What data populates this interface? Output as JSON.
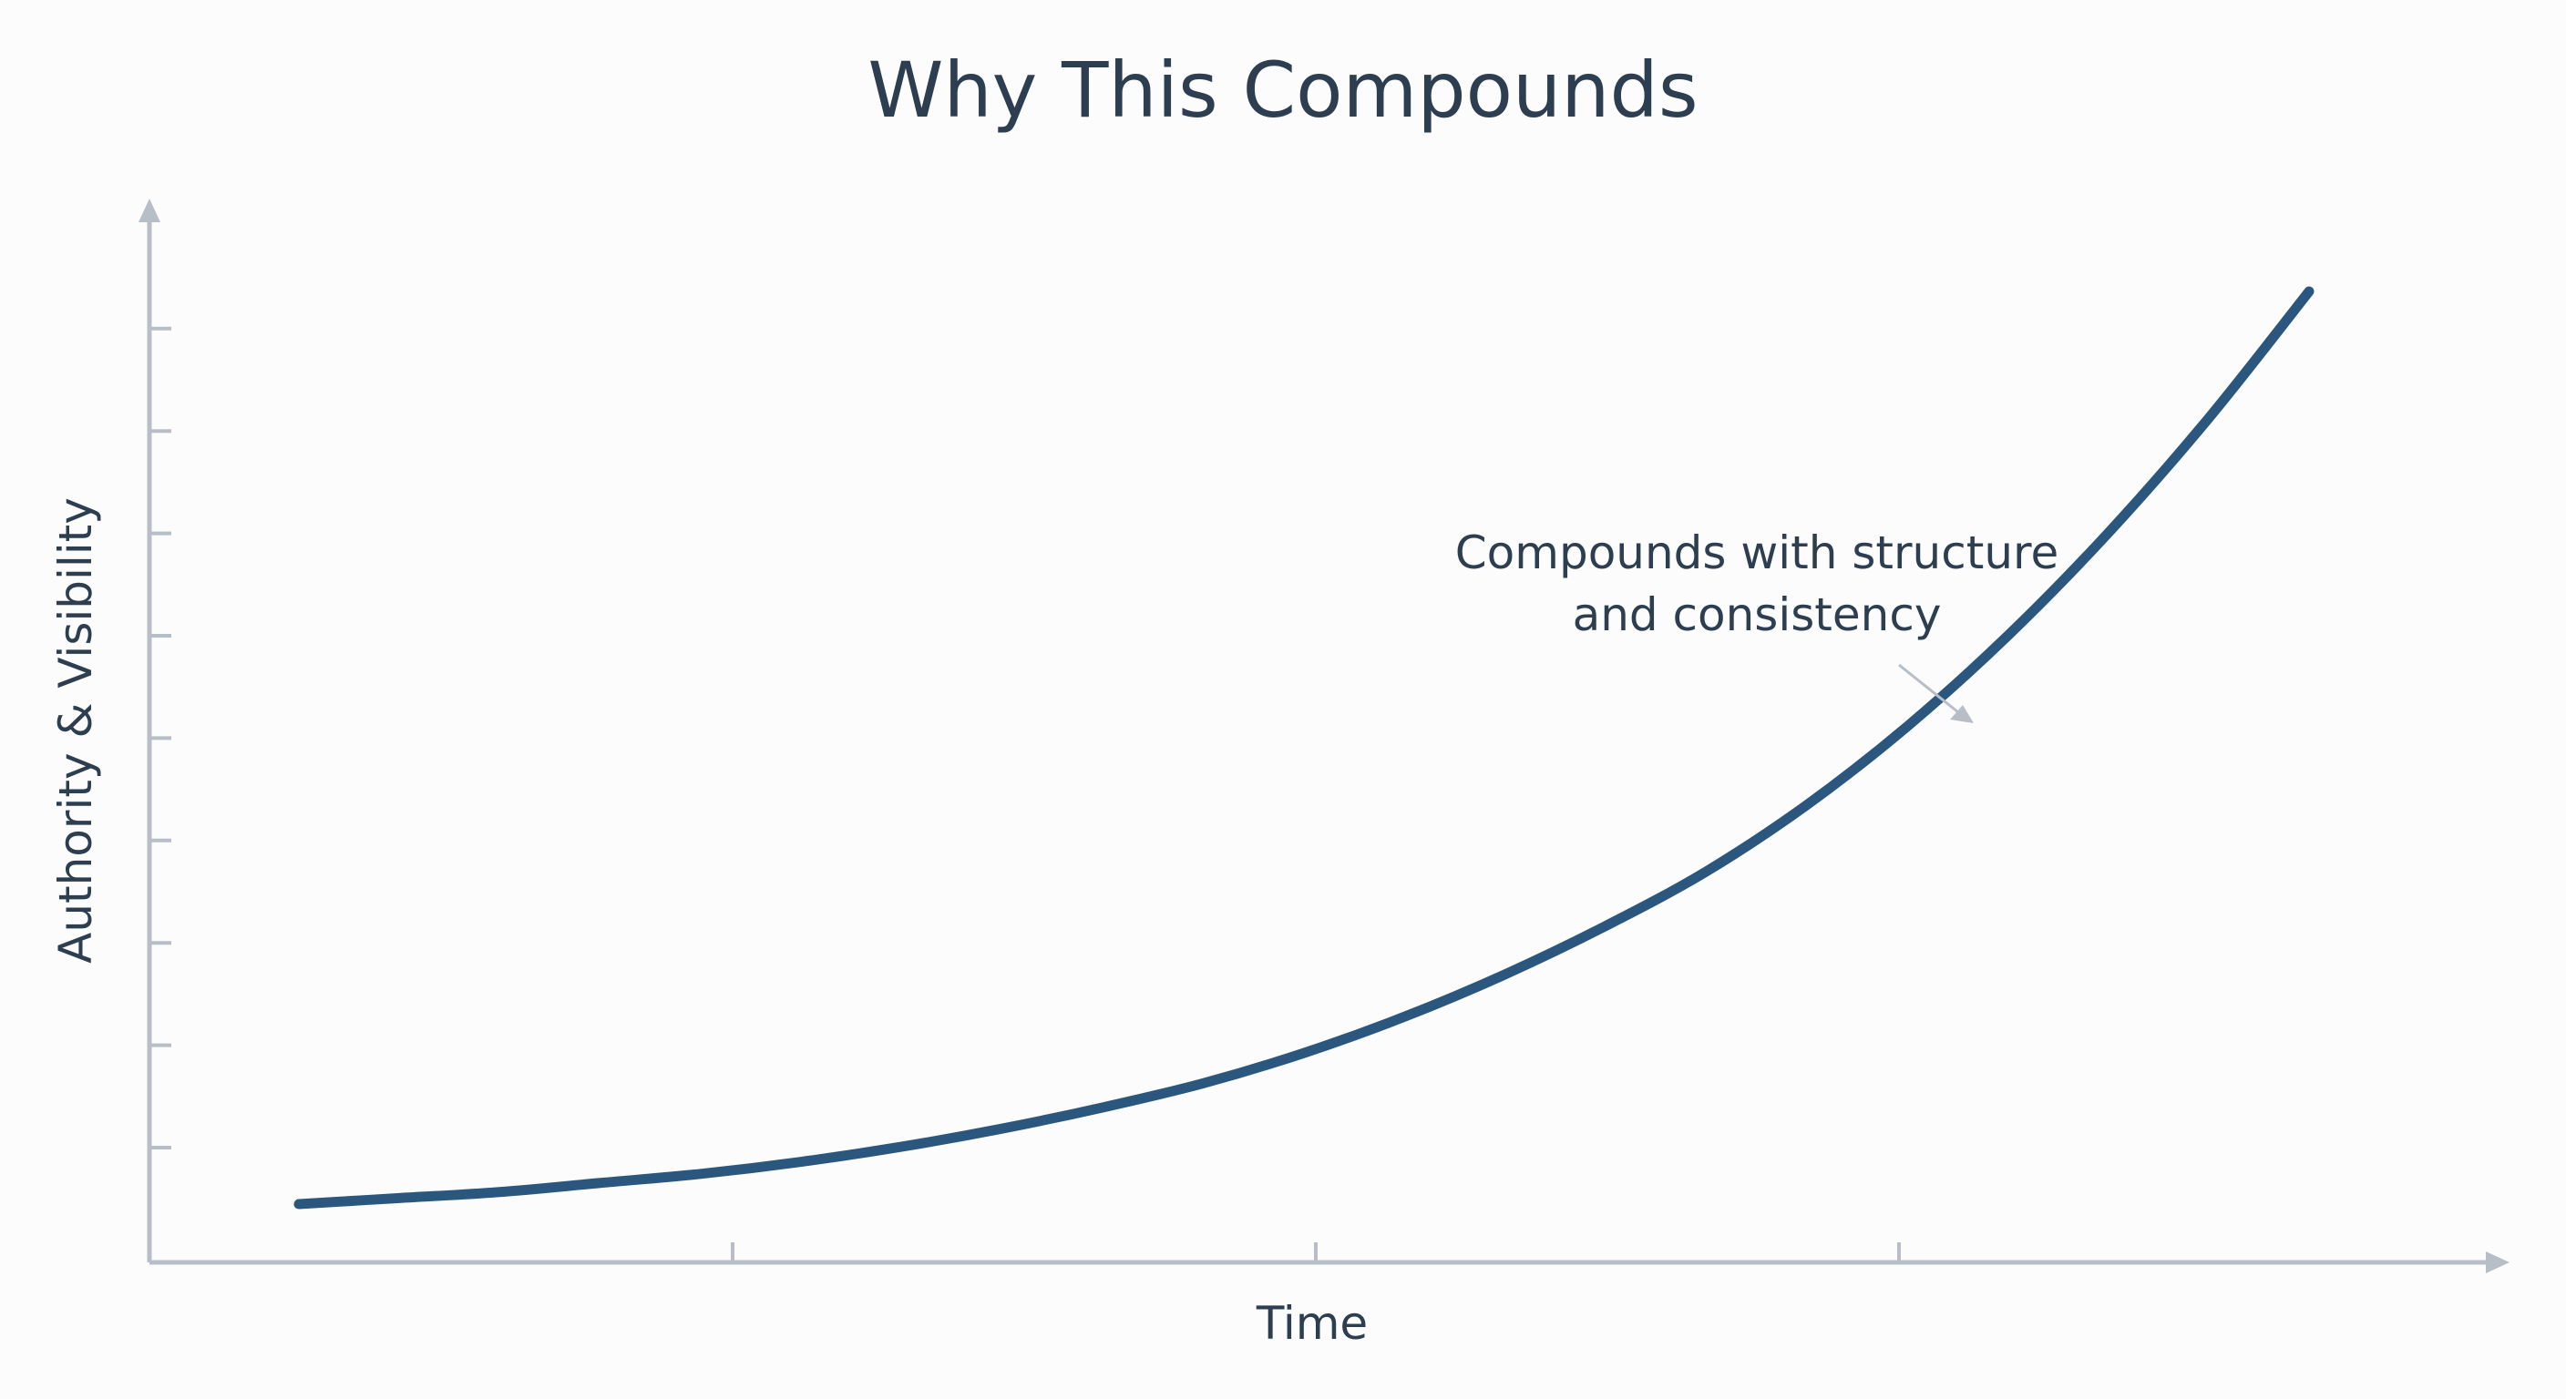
{
  "chart_data": {
    "type": "line",
    "title": "Why This Compounds",
    "xlabel": "Time",
    "ylabel": "Authority & Visibility",
    "x": [
      0,
      1,
      2,
      3,
      4,
      5,
      6,
      7,
      8,
      9,
      10,
      11,
      12,
      13,
      14,
      15,
      16,
      17,
      18,
      19,
      20
    ],
    "series": [
      {
        "values": [
          0.5,
          0.6,
          0.7,
          0.85,
          1.0,
          1.2,
          1.45,
          1.75,
          2.1,
          2.5,
          3.0,
          3.6,
          4.3,
          5.1,
          6.0,
          7.1,
          8.4,
          9.9,
          11.6,
          13.5,
          15.6
        ]
      }
    ],
    "annotations": [
      {
        "line1": "Compounds with structure",
        "line2": "and consistency"
      }
    ],
    "x_ticks": 3,
    "y_ticks": 9,
    "grid": false,
    "colors": {
      "line": "#2b577e",
      "axis": "#b7bec7",
      "text": "#2c3e50",
      "background": "#fcfcfc"
    }
  }
}
